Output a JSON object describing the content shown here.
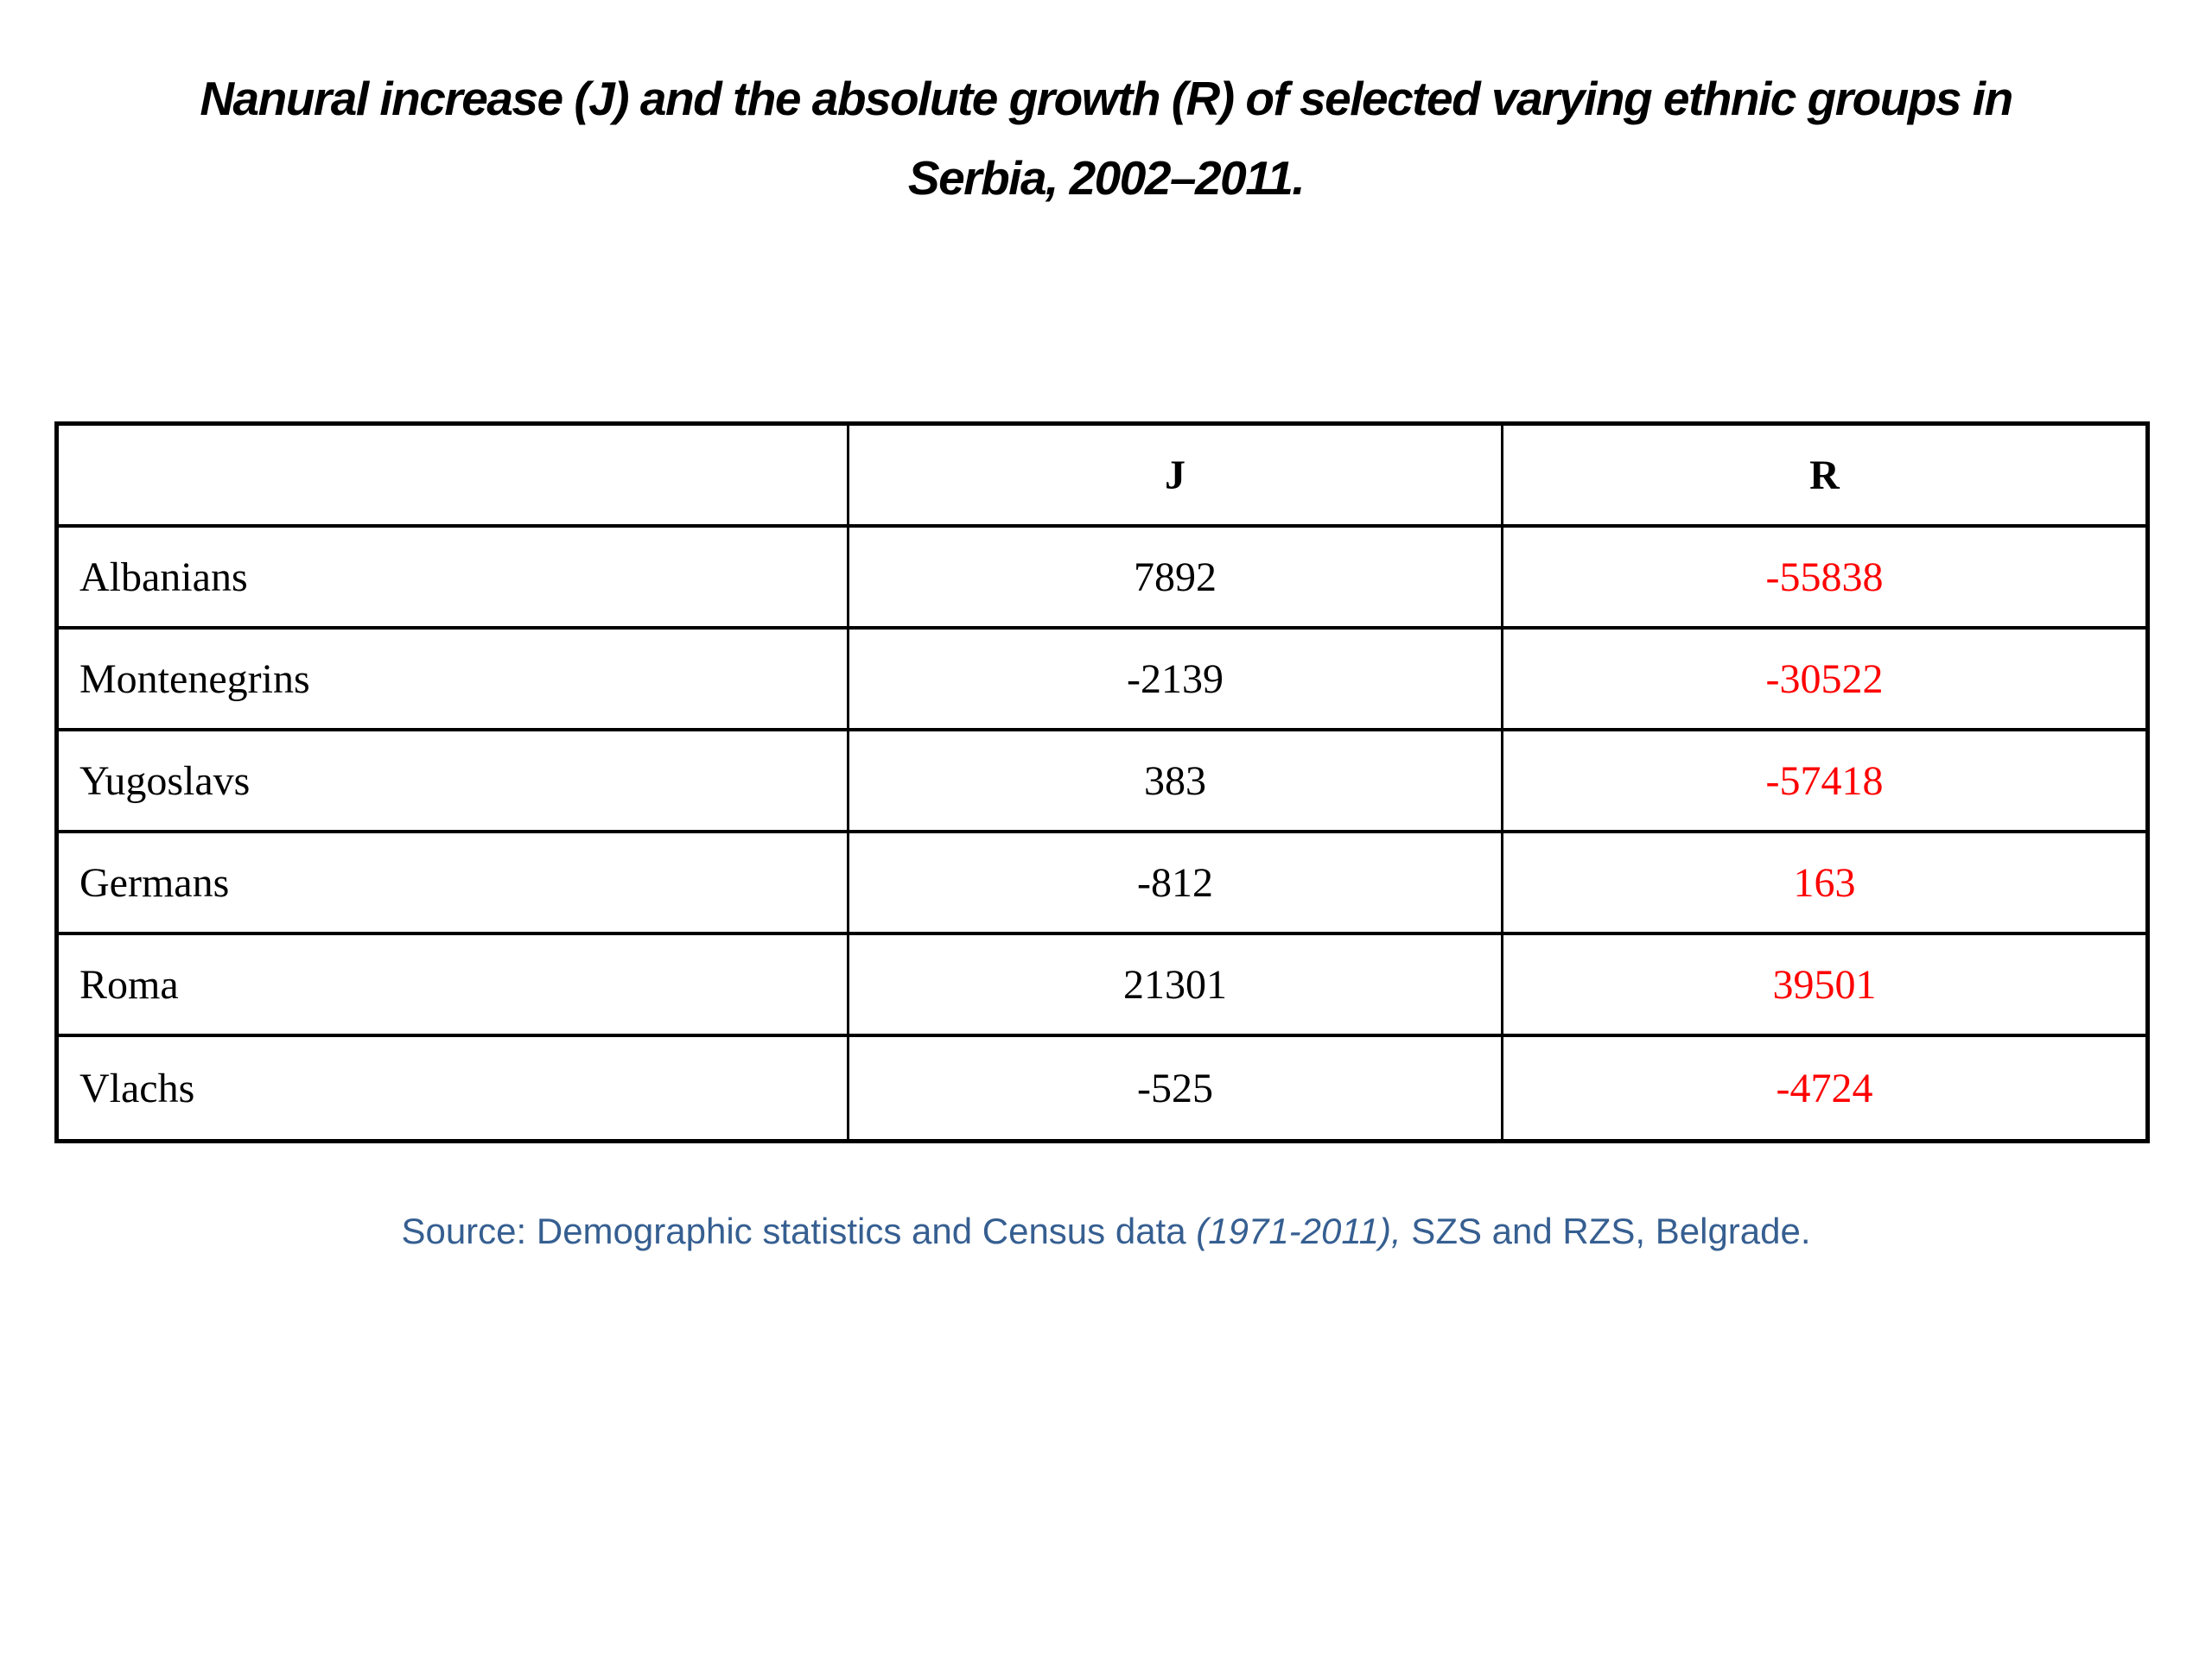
{
  "title": {
    "line1": "Nanural increase (J) and the absolute growth (R) of selected varying ethnic groups in",
    "line2": "Serbia, 2002–2011."
  },
  "table": {
    "header": {
      "col1": "",
      "col2": "J",
      "col3": "R"
    },
    "rows": [
      {
        "group": "Albanians",
        "j": "7892",
        "r": "-55838"
      },
      {
        "group": "Montenegrins",
        "j": "-2139",
        "r": "-30522"
      },
      {
        "group": "Yugoslavs",
        "j": "383",
        "r": "-57418"
      },
      {
        "group": "Germans",
        "j": "-812",
        "r": "163"
      },
      {
        "group": "Roma",
        "j": "21301",
        "r": "39501"
      },
      {
        "group": "Vlachs",
        "j": "-525",
        "r": "-4724"
      }
    ]
  },
  "source": {
    "prefix": "Source: Demographic statistics and Census data",
    "italic": " (1971-2011),",
    "suffix": " SZS and RZS, Belgrade."
  },
  "colors": {
    "title_text": "#000000",
    "table_text": "#000000",
    "table_border": "#000000",
    "r_column_values": "#ff0000",
    "source_text": "#365f91",
    "background": "#ffffff"
  },
  "chart_data": {
    "type": "table",
    "title": "Nanural increase (J) and the absolute growth (R) of selected varying ethnic groups in Serbia, 2002–2011.",
    "columns": [
      "",
      "J",
      "R"
    ],
    "rows": [
      [
        "Albanians",
        7892,
        -55838
      ],
      [
        "Montenegrins",
        -2139,
        -30522
      ],
      [
        "Yugoslavs",
        383,
        -57418
      ],
      [
        "Germans",
        -812,
        163
      ],
      [
        "Roma",
        21301,
        39501
      ],
      [
        "Vlachs",
        -525,
        -4724
      ]
    ],
    "notes": "J values rendered black; R values rendered red; source caption in blue"
  }
}
